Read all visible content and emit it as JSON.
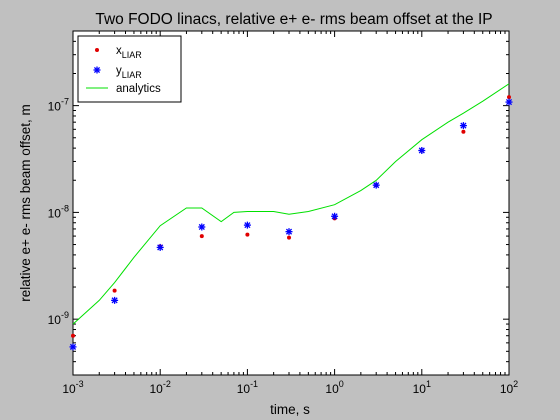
{
  "chart_data": {
    "type": "scatter",
    "title": "Two FODO linacs, relative e+ e- rms beam offset at the IP",
    "xlabel": "time, s",
    "ylabel": "relative e+ e- rms beam offset, m",
    "xscale": "log",
    "yscale": "log",
    "xlim": [
      0.001,
      100
    ],
    "ylim": [
      3e-10,
      5e-07
    ],
    "grid": false,
    "legend_position": "top-left",
    "x_ticks": [
      {
        "base": "10",
        "exp": "-3",
        "value": 0.001
      },
      {
        "base": "10",
        "exp": "-2",
        "value": 0.01
      },
      {
        "base": "10",
        "exp": "-1",
        "value": 0.1
      },
      {
        "base": "10",
        "exp": "0",
        "value": 1
      },
      {
        "base": "10",
        "exp": "1",
        "value": 10
      },
      {
        "base": "10",
        "exp": "2",
        "value": 100
      }
    ],
    "y_ticks": [
      {
        "base": "10",
        "exp": "-9",
        "value": 1e-09
      },
      {
        "base": "10",
        "exp": "-8",
        "value": 1e-08
      },
      {
        "base": "10",
        "exp": "-7",
        "value": 1e-07
      }
    ],
    "series": [
      {
        "name": "x",
        "name_sub": "LIAR",
        "marker": "dot",
        "color": "#e00000",
        "x": [
          0.001,
          0.003,
          0.01,
          0.03,
          0.1,
          0.3,
          1,
          3,
          10,
          30,
          100
        ],
        "y": [
          7e-10,
          1.85e-09,
          4.8e-09,
          6e-09,
          6.2e-09,
          5.8e-09,
          8.8e-09,
          1.8e-08,
          3.8e-08,
          5.7e-08,
          1.2e-07
        ]
      },
      {
        "name": "y",
        "name_sub": "LIAR",
        "marker": "star",
        "color": "#0000ff",
        "x": [
          0.001,
          0.003,
          0.01,
          0.03,
          0.1,
          0.3,
          1,
          3,
          10,
          30,
          100
        ],
        "y": [
          5.5e-10,
          1.5e-09,
          4.7e-09,
          7.3e-09,
          7.6e-09,
          6.6e-09,
          9.2e-09,
          1.8e-08,
          3.8e-08,
          6.5e-08,
          1.08e-07
        ]
      },
      {
        "name": "analytics",
        "marker": "line",
        "color": "#00e000",
        "x": [
          0.001,
          0.002,
          0.003,
          0.005,
          0.01,
          0.02,
          0.03,
          0.05,
          0.07,
          0.1,
          0.2,
          0.3,
          0.5,
          1,
          2,
          3,
          5,
          10,
          20,
          30,
          50,
          100
        ],
        "y": [
          9e-10,
          1.5e-09,
          2.2e-09,
          3.8e-09,
          7.5e-09,
          1.1e-08,
          1.1e-08,
          8.2e-09,
          1e-08,
          1.02e-08,
          1.02e-08,
          9.6e-09,
          1.02e-08,
          1.18e-08,
          1.6e-08,
          2e-08,
          3e-08,
          4.8e-08,
          7e-08,
          8.5e-08,
          1.1e-07,
          1.6e-07
        ]
      }
    ]
  }
}
